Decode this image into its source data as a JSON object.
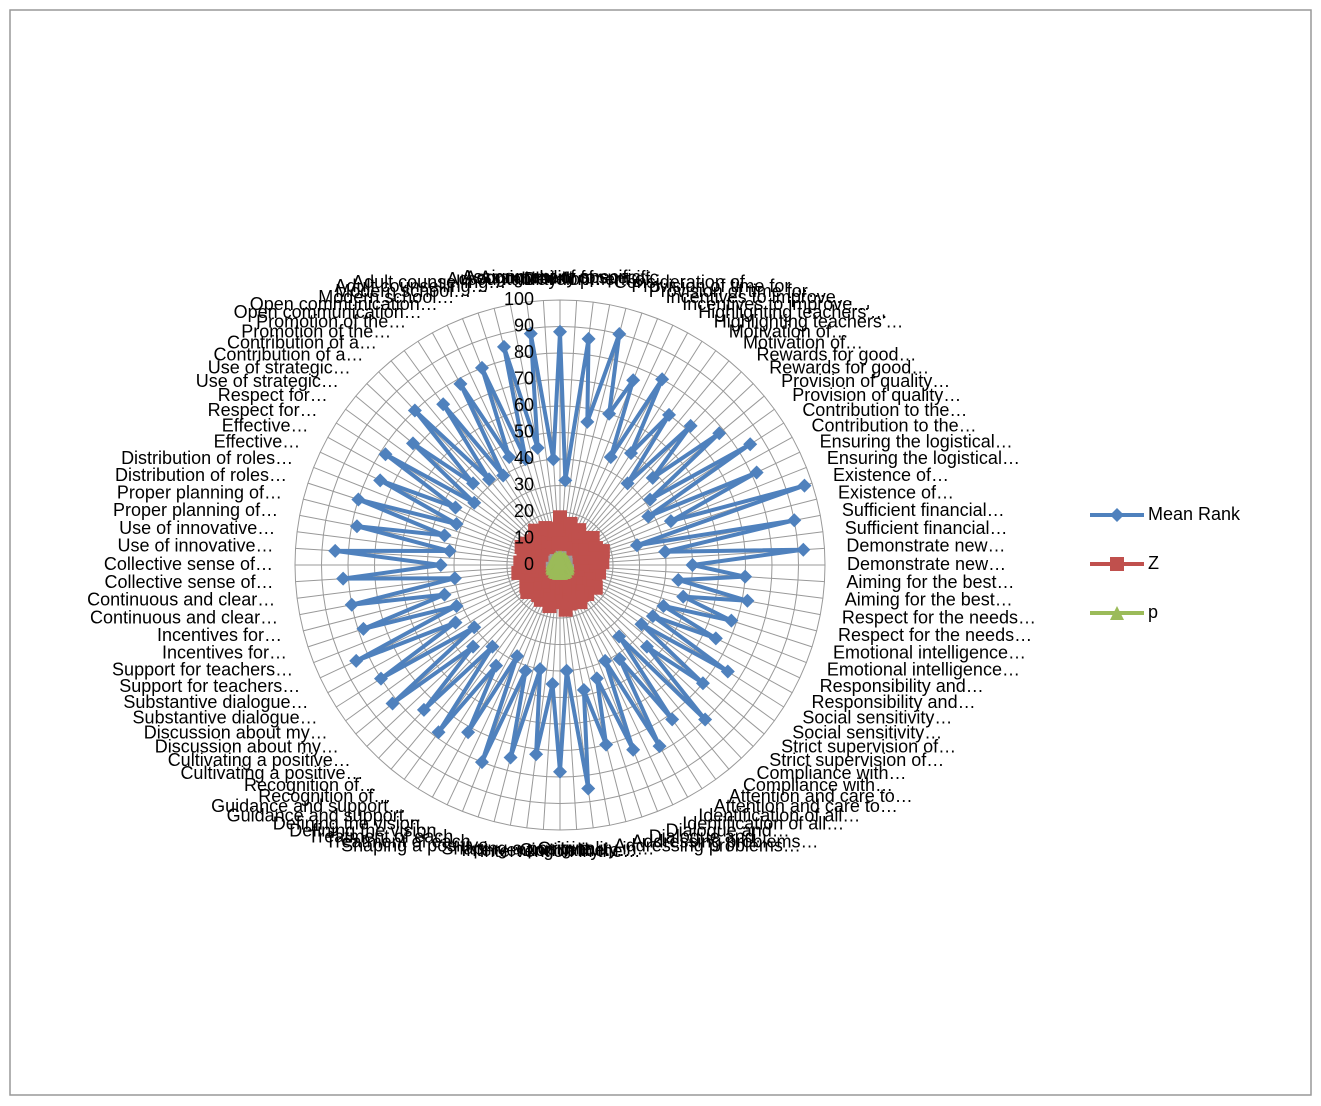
{
  "chart_data": {
    "type": "radar",
    "categories": [
      "Assignment of specific…",
      "Assignment of specific…",
      "Development of…",
      "Consideration of…",
      "Provision of time for…",
      "Provision of time for…",
      "Incentives to improve…",
      "Incentives to improve…",
      "Highlighting teachers'…",
      "Highlighting teachers'…",
      "Motivation of…",
      "Motivation of…",
      "Rewards for good…",
      "Rewards for good…",
      "Provision of quality…",
      "Provision of quality…",
      "Contribution to the…",
      "Contribution to the…",
      "Ensuring the logistical…",
      "Ensuring the logistical…",
      "Existence of…",
      "Existence of…",
      "Sufficient financial…",
      "Sufficient financial…",
      "Demonstrate new…",
      "Demonstrate new…",
      "Aiming for the best…",
      "Aiming for the best…",
      "Respect for the needs…",
      "Respect for the needs…",
      "Emotional intelligence…",
      "Emotional intelligence…",
      "Responsibility and…",
      "Responsibility and…",
      "Social sensitivity…",
      "Social sensitivity…",
      "Strict supervision of…",
      "Strict supervision of…",
      "Compliance with…",
      "Compliance with…",
      "Attention and care to…",
      "Attention and care to…",
      "Identification of all…",
      "Identification of all…",
      "Dialogue and…",
      "Dialogue and…",
      "Addressing problems…",
      "Addressing problems…",
      "Originality in…",
      "Originality in…",
      "Intervention in the…",
      "Intervention in the…",
      "Shaping a positive…",
      "Shaping a positive…",
      "Treatment of each…",
      "Treatment of each…",
      "Defining the vision…",
      "Defining the vision…",
      "Guidance and support…",
      "Guidance and support…",
      "Recognition of…",
      "Recognition of…",
      "Cultivating a positive…",
      "Cultivating a positive…",
      "Discussion about my…",
      "Discussion about my…",
      "Substantive dialogue…",
      "Substantive dialogue…",
      "Support for teachers…",
      "Support for teachers…",
      "Incentives for…",
      "Incentives for…",
      "Continuous and clear…",
      "Continuous and clear…",
      "Collective sense of…",
      "Collective sense of…",
      "Use of innovative…",
      "Use of innovative…",
      "Proper planning of…",
      "Proper planning of…",
      "Distribution of roles…",
      "Distribution of roles…",
      "Effective…",
      "Effective…",
      "Respect for…",
      "Respect for…",
      "Use of strategic…",
      "Use of strategic…",
      "Contribution of a…",
      "Contribution of a…",
      "Promotion of the…",
      "Promotion of the…",
      "Open communication…",
      "Open communication…",
      "Modern school…",
      "Modern school…",
      "Adult counselling…",
      "Adult counselling…",
      "Accountability for…",
      "Accountability for…"
    ],
    "series": [
      {
        "name": "Mean Rank",
        "color": "#4f81bd",
        "marker": "diamond",
        "values": [
          88,
          32,
          86,
          55,
          90,
          60,
          75,
          45,
          80,
          50,
          70,
          40,
          72,
          48,
          78,
          42,
          85,
          38,
          82,
          45,
          97,
          30,
          90,
          40,
          92,
          50,
          70,
          45,
          72,
          48,
          68,
          42,
          65,
          40,
          75,
          38,
          70,
          45,
          80,
          35,
          72,
          42,
          78,
          40,
          75,
          45,
          70,
          48,
          85,
          40,
          78,
          45,
          72,
          40,
          75,
          42,
          80,
          38,
          72,
          45,
          78,
          40,
          75,
          45,
          82,
          40,
          80,
          45,
          85,
          42,
          78,
          45,
          80,
          40,
          82,
          45,
          85,
          42,
          78,
          45,
          80,
          42,
          75,
          45,
          78,
          40,
          72,
          45,
          80,
          42,
          75,
          40,
          78,
          45,
          80,
          42,
          85,
          45,
          88,
          40
        ]
      },
      {
        "name": "Z",
        "color": "#c0504d",
        "marker": "square",
        "values": [
          18,
          12,
          14,
          8,
          16,
          10,
          13,
          9,
          15,
          11,
          12,
          8,
          14,
          10,
          16,
          9,
          13,
          11,
          15,
          8,
          17,
          10,
          14,
          9,
          16,
          12,
          13,
          8,
          15,
          10,
          14,
          9,
          12,
          11,
          16,
          8,
          13,
          10,
          15,
          9,
          14,
          12,
          16,
          8,
          13,
          10,
          15,
          9,
          17,
          11,
          14,
          8,
          13,
          10,
          16,
          9,
          12,
          11,
          15,
          8,
          14,
          10,
          13,
          9,
          16,
          12,
          15,
          8,
          14,
          10,
          13,
          9,
          16,
          11,
          12,
          8,
          15,
          10,
          14,
          9,
          13,
          12,
          16,
          8,
          15,
          10,
          14,
          9,
          13,
          11,
          16,
          8,
          12,
          10,
          15,
          9,
          14,
          12,
          13,
          8
        ]
      },
      {
        "name": "p",
        "color": "#9bbb59",
        "marker": "triangle",
        "values": [
          2,
          1,
          3,
          1,
          2,
          1,
          2,
          1,
          3,
          1,
          2,
          1,
          3,
          1,
          2,
          1,
          2,
          1,
          3,
          1,
          2,
          1,
          3,
          1,
          2,
          1,
          2,
          1,
          3,
          1,
          2,
          1,
          3,
          1,
          2,
          1,
          2,
          1,
          3,
          1,
          2,
          1,
          3,
          1,
          2,
          1,
          2,
          1,
          3,
          1,
          2,
          1,
          3,
          1,
          2,
          1,
          2,
          1,
          3,
          1,
          2,
          1,
          3,
          1,
          2,
          1,
          2,
          1,
          3,
          1,
          2,
          1,
          3,
          1,
          2,
          1,
          2,
          1,
          3,
          1,
          2,
          1,
          3,
          1,
          2,
          1,
          2,
          1,
          3,
          1,
          2,
          1,
          3,
          1,
          2,
          1,
          2,
          1,
          3,
          1
        ]
      }
    ],
    "rlim": [
      0,
      100
    ],
    "rticks": [
      0,
      10,
      20,
      30,
      40,
      50,
      60,
      70,
      80,
      90,
      100
    ],
    "grid": true,
    "legend": "right"
  }
}
